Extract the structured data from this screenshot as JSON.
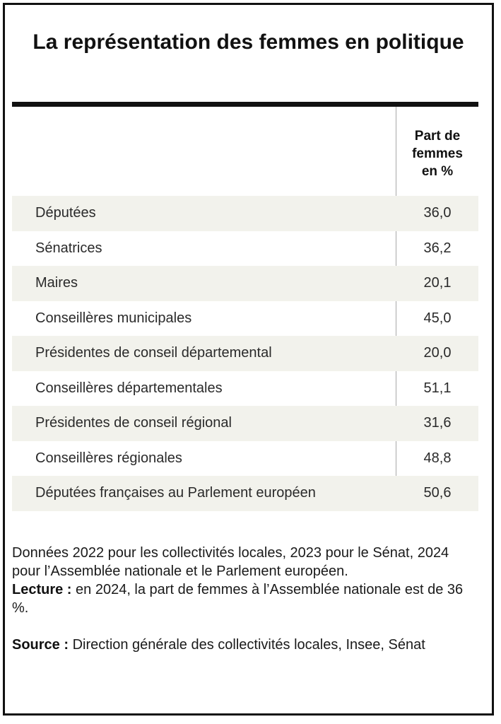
{
  "title": "La représentation des femmes en politique",
  "column_header": [
    "Part de",
    "femmes",
    "en %"
  ],
  "chart_data": {
    "type": "table",
    "title": "La représentation des femmes en politique",
    "column_header": "Part de femmes en %",
    "rows": [
      {
        "label": "Députées",
        "value": "36,0"
      },
      {
        "label": "Sénatrices",
        "value": "36,2"
      },
      {
        "label": "Maires",
        "value": "20,1"
      },
      {
        "label": "Conseillères municipales",
        "value": "45,0"
      },
      {
        "label": "Présidentes de conseil départemental",
        "value": "20,0"
      },
      {
        "label": "Conseillères départementales",
        "value": "51,1"
      },
      {
        "label": "Présidentes de conseil régional",
        "value": "31,6"
      },
      {
        "label": "Conseillères régionales",
        "value": "48,8"
      },
      {
        "label": "Députées françaises au Parlement européen",
        "value": "50,6"
      }
    ]
  },
  "notes": {
    "data_note": "Données 2022 pour les collectivités locales, 2023 pour le Sénat, 2024 pour l’Assemblée nationale et le Parlement européen.",
    "reading_label": "Lecture :",
    "reading_text": " en 2024, la part de femmes à l’Assemblée nationale est de 36 %.",
    "source_label": "Source :",
    "source_text": " Direction générale des collectivités locales, Insee, Sénat"
  },
  "colors": {
    "border": "#111111",
    "row_alt": "#f2f2ec",
    "divider": "#a8a8a8"
  }
}
